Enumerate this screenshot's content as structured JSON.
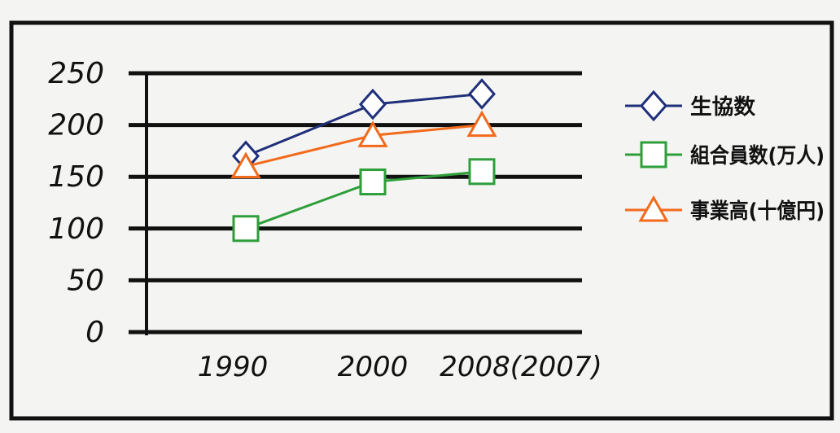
{
  "chart_data": {
    "type": "line",
    "categories": [
      "1990",
      "2000",
      "2008(2007)"
    ],
    "ylim": [
      0,
      250
    ],
    "yticks": [
      "0",
      "50",
      "100",
      "150",
      "200",
      "250"
    ],
    "grid": true,
    "legend_position": "right",
    "series": [
      {
        "name": "生協数",
        "values": [
          170,
          220,
          230
        ],
        "color": "#1f2f7a",
        "marker": "diamond"
      },
      {
        "name": "組合員数(万人)",
        "values": [
          100,
          145,
          155
        ],
        "color": "#2e9e3a",
        "marker": "square"
      },
      {
        "name": "事業高(十億円)",
        "values": [
          160,
          190,
          200
        ],
        "color": "#f26a1b",
        "marker": "triangle"
      }
    ]
  }
}
